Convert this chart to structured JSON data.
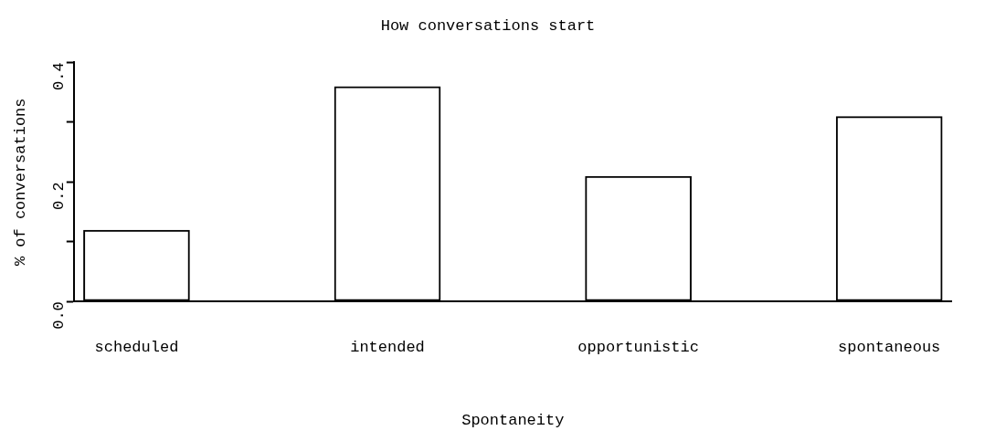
{
  "chart_data": {
    "type": "bar",
    "title": "How conversations start",
    "xlabel": "Spontaneity",
    "ylabel": "% of conversations",
    "categories": [
      "scheduled",
      null,
      "intended",
      null,
      "opportunistic",
      null,
      "spontaneous"
    ],
    "values": [
      0.12,
      0,
      0.36,
      0,
      0.21,
      0,
      0.31
    ],
    "color": "#000000",
    "ylim": [
      0,
      0.4
    ],
    "yticks": [
      {
        "value": 0,
        "label": "0.0"
      },
      {
        "value": 0.1,
        "label": null
      },
      {
        "value": 0.2,
        "label": "0.2"
      },
      {
        "value": 0.3,
        "label": null
      },
      {
        "value": 0.4,
        "label": "0.4"
      }
    ],
    "grid": false,
    "legend": false
  }
}
